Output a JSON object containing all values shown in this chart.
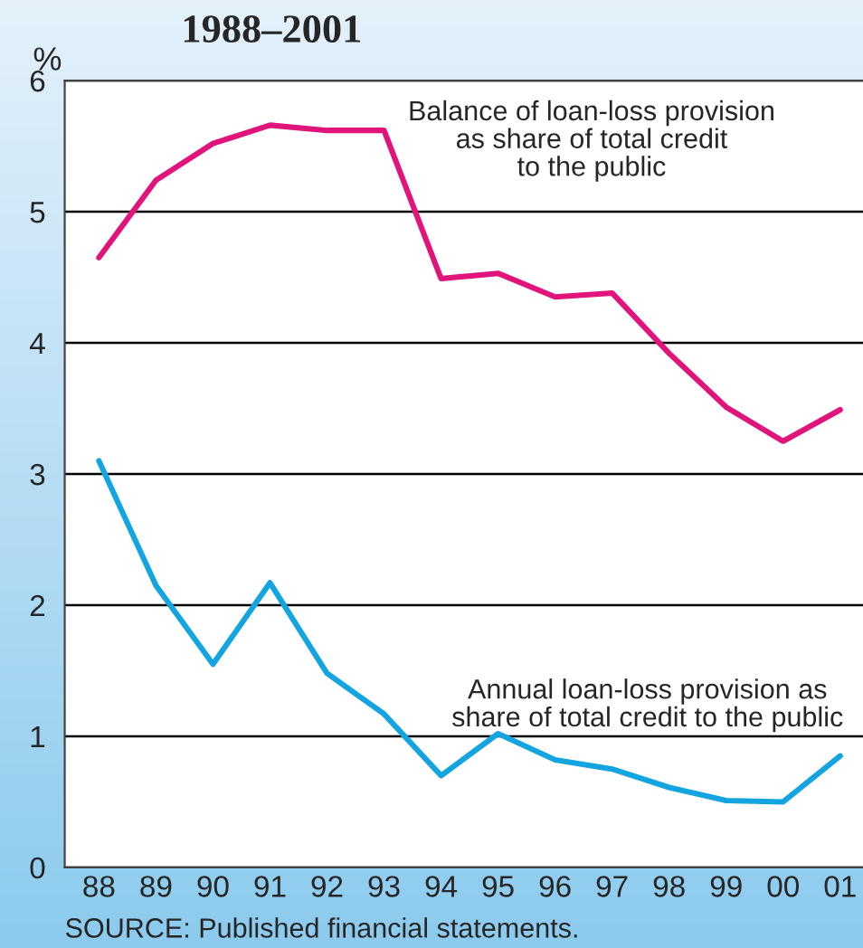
{
  "chart_data": {
    "type": "line",
    "title": "1988–2001",
    "ylabel": "%",
    "categories": [
      "88",
      "89",
      "90",
      "91",
      "92",
      "93",
      "94",
      "95",
      "96",
      "97",
      "98",
      "99",
      "00",
      "01"
    ],
    "series": [
      {
        "color": "#e0147a",
        "values": [
          4.65,
          5.24,
          5.52,
          5.66,
          5.62,
          5.62,
          4.49,
          4.53,
          4.35,
          4.38,
          3.92,
          3.51,
          3.25,
          3.49
        ]
      },
      {
        "color": "#14a5e0",
        "values": [
          3.1,
          2.15,
          1.55,
          2.17,
          1.48,
          1.17,
          0.7,
          1.02,
          0.82,
          0.75,
          0.61,
          0.51,
          0.5,
          0.85
        ]
      }
    ],
    "ylim": [
      0,
      6
    ],
    "yticks": [
      0,
      1,
      2,
      3,
      4,
      5,
      6
    ],
    "grid": "y",
    "legend": false,
    "marker": "none",
    "line_style": "solid",
    "annotations": [
      "Balance of loan-loss provision\nas share of total credit\nto the public",
      "Annual loan-loss provision as\nshare of total credit to the public",
      "SOURCE: Published financial statements."
    ]
  }
}
